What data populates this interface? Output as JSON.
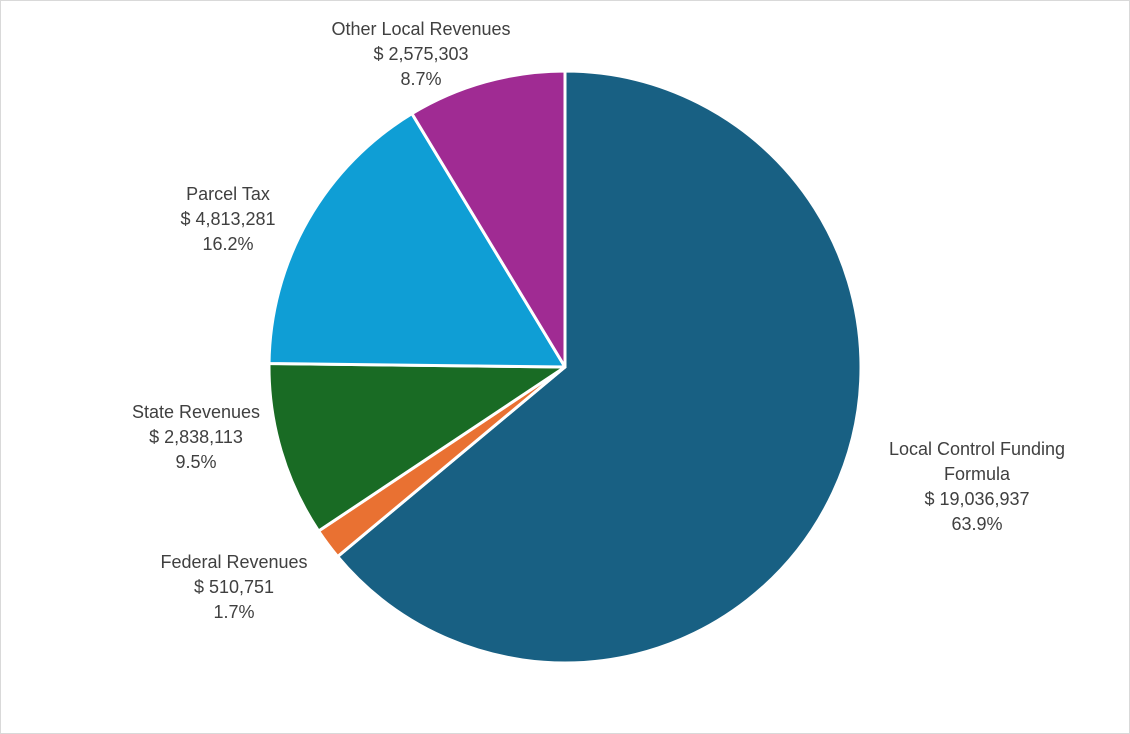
{
  "chart_data": {
    "type": "pie",
    "title": "",
    "start_angle_deg": 0,
    "direction": "clockwise",
    "slices": [
      {
        "name_lines": [
          "Local Control Funding",
          "Formula"
        ],
        "value": 19036937,
        "value_label": "$ 19,036,937",
        "percent_label": "63.9%",
        "color": "#186083"
      },
      {
        "name_lines": [
          "Federal Revenues"
        ],
        "value": 510751,
        "value_label": "$ 510,751",
        "percent_label": "1.7%",
        "color": "#E97132"
      },
      {
        "name_lines": [
          "State Revenues"
        ],
        "value": 2838113,
        "value_label": "$ 2,838,113",
        "percent_label": "9.5%",
        "color": "#196B24"
      },
      {
        "name_lines": [
          "Parcel Tax"
        ],
        "value": 4813281,
        "value_label": "$ 4,813,281",
        "percent_label": "16.2%",
        "color": "#0F9ED5"
      },
      {
        "name_lines": [
          "Other Local Revenues"
        ],
        "value": 2575303,
        "value_label": "$ 2,575,303",
        "percent_label": "8.7%",
        "color": "#A02B93"
      }
    ],
    "legend": "none",
    "label_position": "outside"
  }
}
